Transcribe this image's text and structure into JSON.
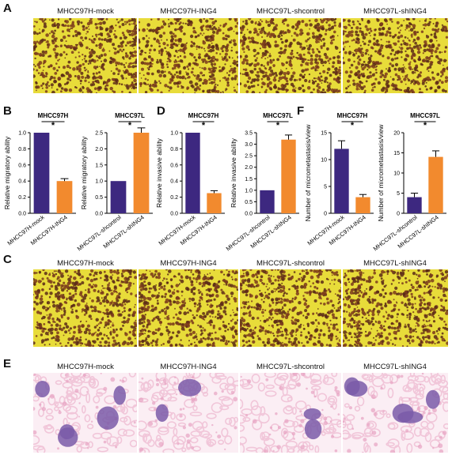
{
  "panels": {
    "A": {
      "label": "A",
      "captions": [
        "MHCC97H-mock",
        "MHCC97H-ING4",
        "MHCC97L-shcontrol",
        "MHCC97L-shING4"
      ]
    },
    "B": {
      "label": "B"
    },
    "D": {
      "label": "D"
    },
    "F": {
      "label": "F"
    },
    "C": {
      "label": "C",
      "captions": [
        "MHCC97H-mock",
        "MHCC97H-ING4",
        "MHCC97L-shcontrol",
        "MHCC97L-shING4"
      ]
    },
    "E": {
      "label": "E",
      "captions": [
        "MHCC97H-mock",
        "MHCC97H-ING4",
        "MHCC97L-shcontrol",
        "MHCC97L-shING4"
      ]
    }
  },
  "colors": {
    "purple": "#3d2880",
    "orange": "#f28a2e",
    "stain_bg": "#e8dc3a",
    "cell": "#5a2a18",
    "he_pink": "#f1c6d9",
    "he_purple": "#7a5aa8"
  },
  "chart_data": [
    {
      "id": "B1",
      "type": "bar",
      "title": "MHCC97H",
      "ylabel": "Relative migratory ability",
      "categories": [
        "MHCC97H-mock",
        "MHCC97H-ING4"
      ],
      "values": [
        1.0,
        0.4
      ],
      "errors": [
        0,
        0.03
      ],
      "ylim": [
        0,
        1.0
      ],
      "yticks": [
        "0.0",
        "0.2",
        "0.4",
        "0.6",
        "0.8",
        "1.0"
      ],
      "significance": "*"
    },
    {
      "id": "B2",
      "type": "bar",
      "title": "MHCC97L",
      "ylabel": "Relative migratory ability",
      "categories": [
        "MHCC97L-shcontrol",
        "MHCC97L-shING4"
      ],
      "values": [
        1.0,
        2.5
      ],
      "errors": [
        0,
        0.15
      ],
      "ylim": [
        0,
        2.5
      ],
      "yticks": [
        "0.0",
        "0.5",
        "1.0",
        "1.5",
        "2.0",
        "2.5"
      ],
      "significance": "*"
    },
    {
      "id": "D1",
      "type": "bar",
      "title": "MHCC97H",
      "ylabel": "Relative invasive ability",
      "categories": [
        "MHCC97H-mock",
        "MHCC97H-ING4"
      ],
      "values": [
        1.0,
        0.25
      ],
      "errors": [
        0,
        0.03
      ],
      "ylim": [
        0,
        1.0
      ],
      "yticks": [
        "0.0",
        "0.2",
        "0.4",
        "0.6",
        "0.8",
        "1.0"
      ],
      "significance": "*"
    },
    {
      "id": "D2",
      "type": "bar",
      "title": "MHCC97L",
      "ylabel": "Relative invasive ability",
      "categories": [
        "MHCC97L-shcontrol",
        "MHCC97L-shING4"
      ],
      "values": [
        1.0,
        3.2
      ],
      "errors": [
        0,
        0.2
      ],
      "ylim": [
        0,
        3.5
      ],
      "yticks": [
        "0.0",
        "0.5",
        "1.0",
        "1.5",
        "2.0",
        "2.5",
        "3.0",
        "3.5"
      ],
      "significance": "*"
    },
    {
      "id": "F1",
      "type": "bar",
      "title": "MHCC97H",
      "ylabel": "Number of micrometastasis/view",
      "categories": [
        "MHCC97H-mock",
        "MHCC97H-ING4"
      ],
      "values": [
        12,
        3
      ],
      "errors": [
        1.5,
        0.5
      ],
      "ylim": [
        0,
        15
      ],
      "yticks": [
        "0",
        "5",
        "10",
        "15"
      ],
      "significance": "*"
    },
    {
      "id": "F2",
      "type": "bar",
      "title": "MHCC97L",
      "ylabel": "Number of micrometastasis/view",
      "categories": [
        "MHCC97L-shcontrol",
        "MHCC97L-shING4"
      ],
      "values": [
        4,
        14
      ],
      "errors": [
        1,
        1.5
      ],
      "ylim": [
        0,
        20
      ],
      "yticks": [
        "0",
        "5",
        "10",
        "15",
        "20"
      ],
      "significance": "*"
    }
  ]
}
